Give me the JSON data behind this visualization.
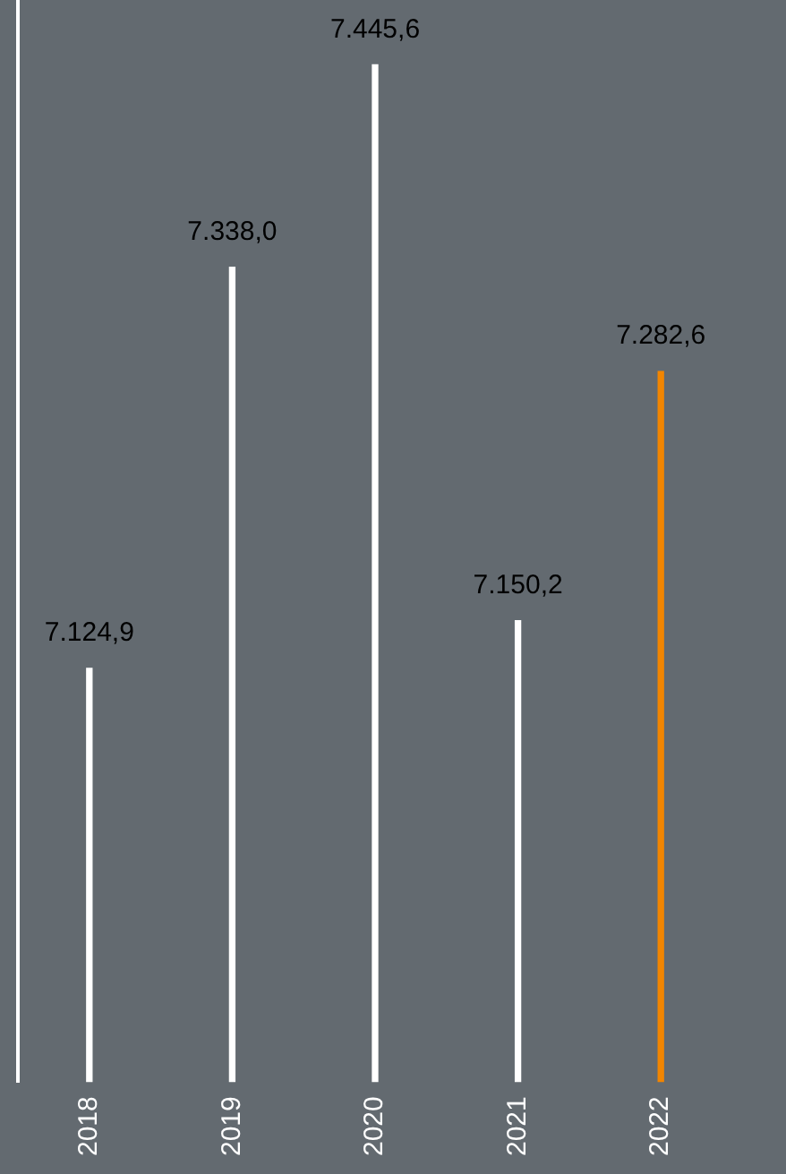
{
  "chart_data": {
    "type": "bar",
    "categories": [
      "2018",
      "2019",
      "2020",
      "2021",
      "2022"
    ],
    "series": [
      {
        "colors": [
          "#ffffff",
          "#ffffff",
          "#ffffff",
          "#ffffff",
          "#f28500"
        ],
        "line_style": [
          "dotted",
          "dotted",
          "dotted",
          "dotted",
          "solid"
        ],
        "values": [
          7124.9,
          7338.0,
          7445.6,
          7150.2,
          7282.6
        ],
        "value_labels": [
          "7.124,9",
          "7.338,0",
          "7.445,6",
          "7.150,2",
          "7.282,6"
        ]
      }
    ],
    "ylim": [
      6905,
      7480
    ],
    "tick_labels": "x",
    "grid": false,
    "legend": false
  }
}
